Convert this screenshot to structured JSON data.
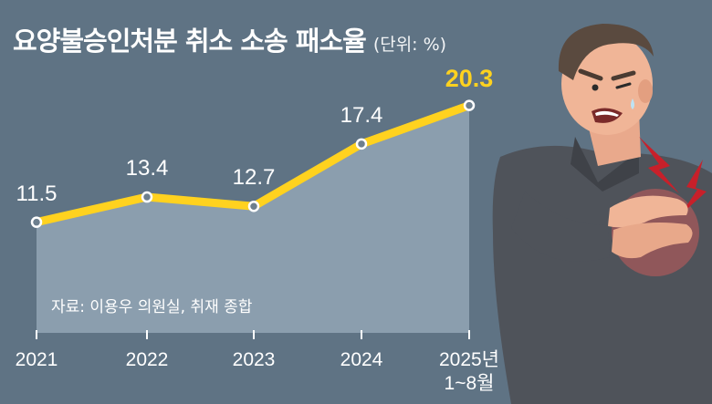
{
  "header": {
    "title": "요양불승인처분 취소 소송 패소율",
    "unit": "(단위: %)"
  },
  "source": "자료: 이용우 의원실, 취재 종합",
  "colors": {
    "background": "#5f7384",
    "line": "#ffd21f",
    "area": "#8b9eae",
    "highlight_label": "#ffd21f",
    "text": "#ffffff"
  },
  "illustration": "man-clutching-chest-in-pain",
  "chart_data": {
    "type": "area",
    "categories": [
      "2021",
      "2022",
      "2023",
      "2024",
      "2025년 1~8월"
    ],
    "category_lines": [
      [
        "2021"
      ],
      [
        "2022"
      ],
      [
        "2023"
      ],
      [
        "2024"
      ],
      [
        "2025년",
        "1~8월"
      ]
    ],
    "values": [
      11.5,
      13.4,
      12.7,
      17.4,
      20.3
    ],
    "value_labels": [
      "11.5",
      "13.4",
      "12.7",
      "17.4",
      "20.3"
    ],
    "title": "요양불승인처분 취소 소송 패소율",
    "unit": "%",
    "ylim": [
      0,
      22
    ],
    "grid": false,
    "legend": "none"
  }
}
